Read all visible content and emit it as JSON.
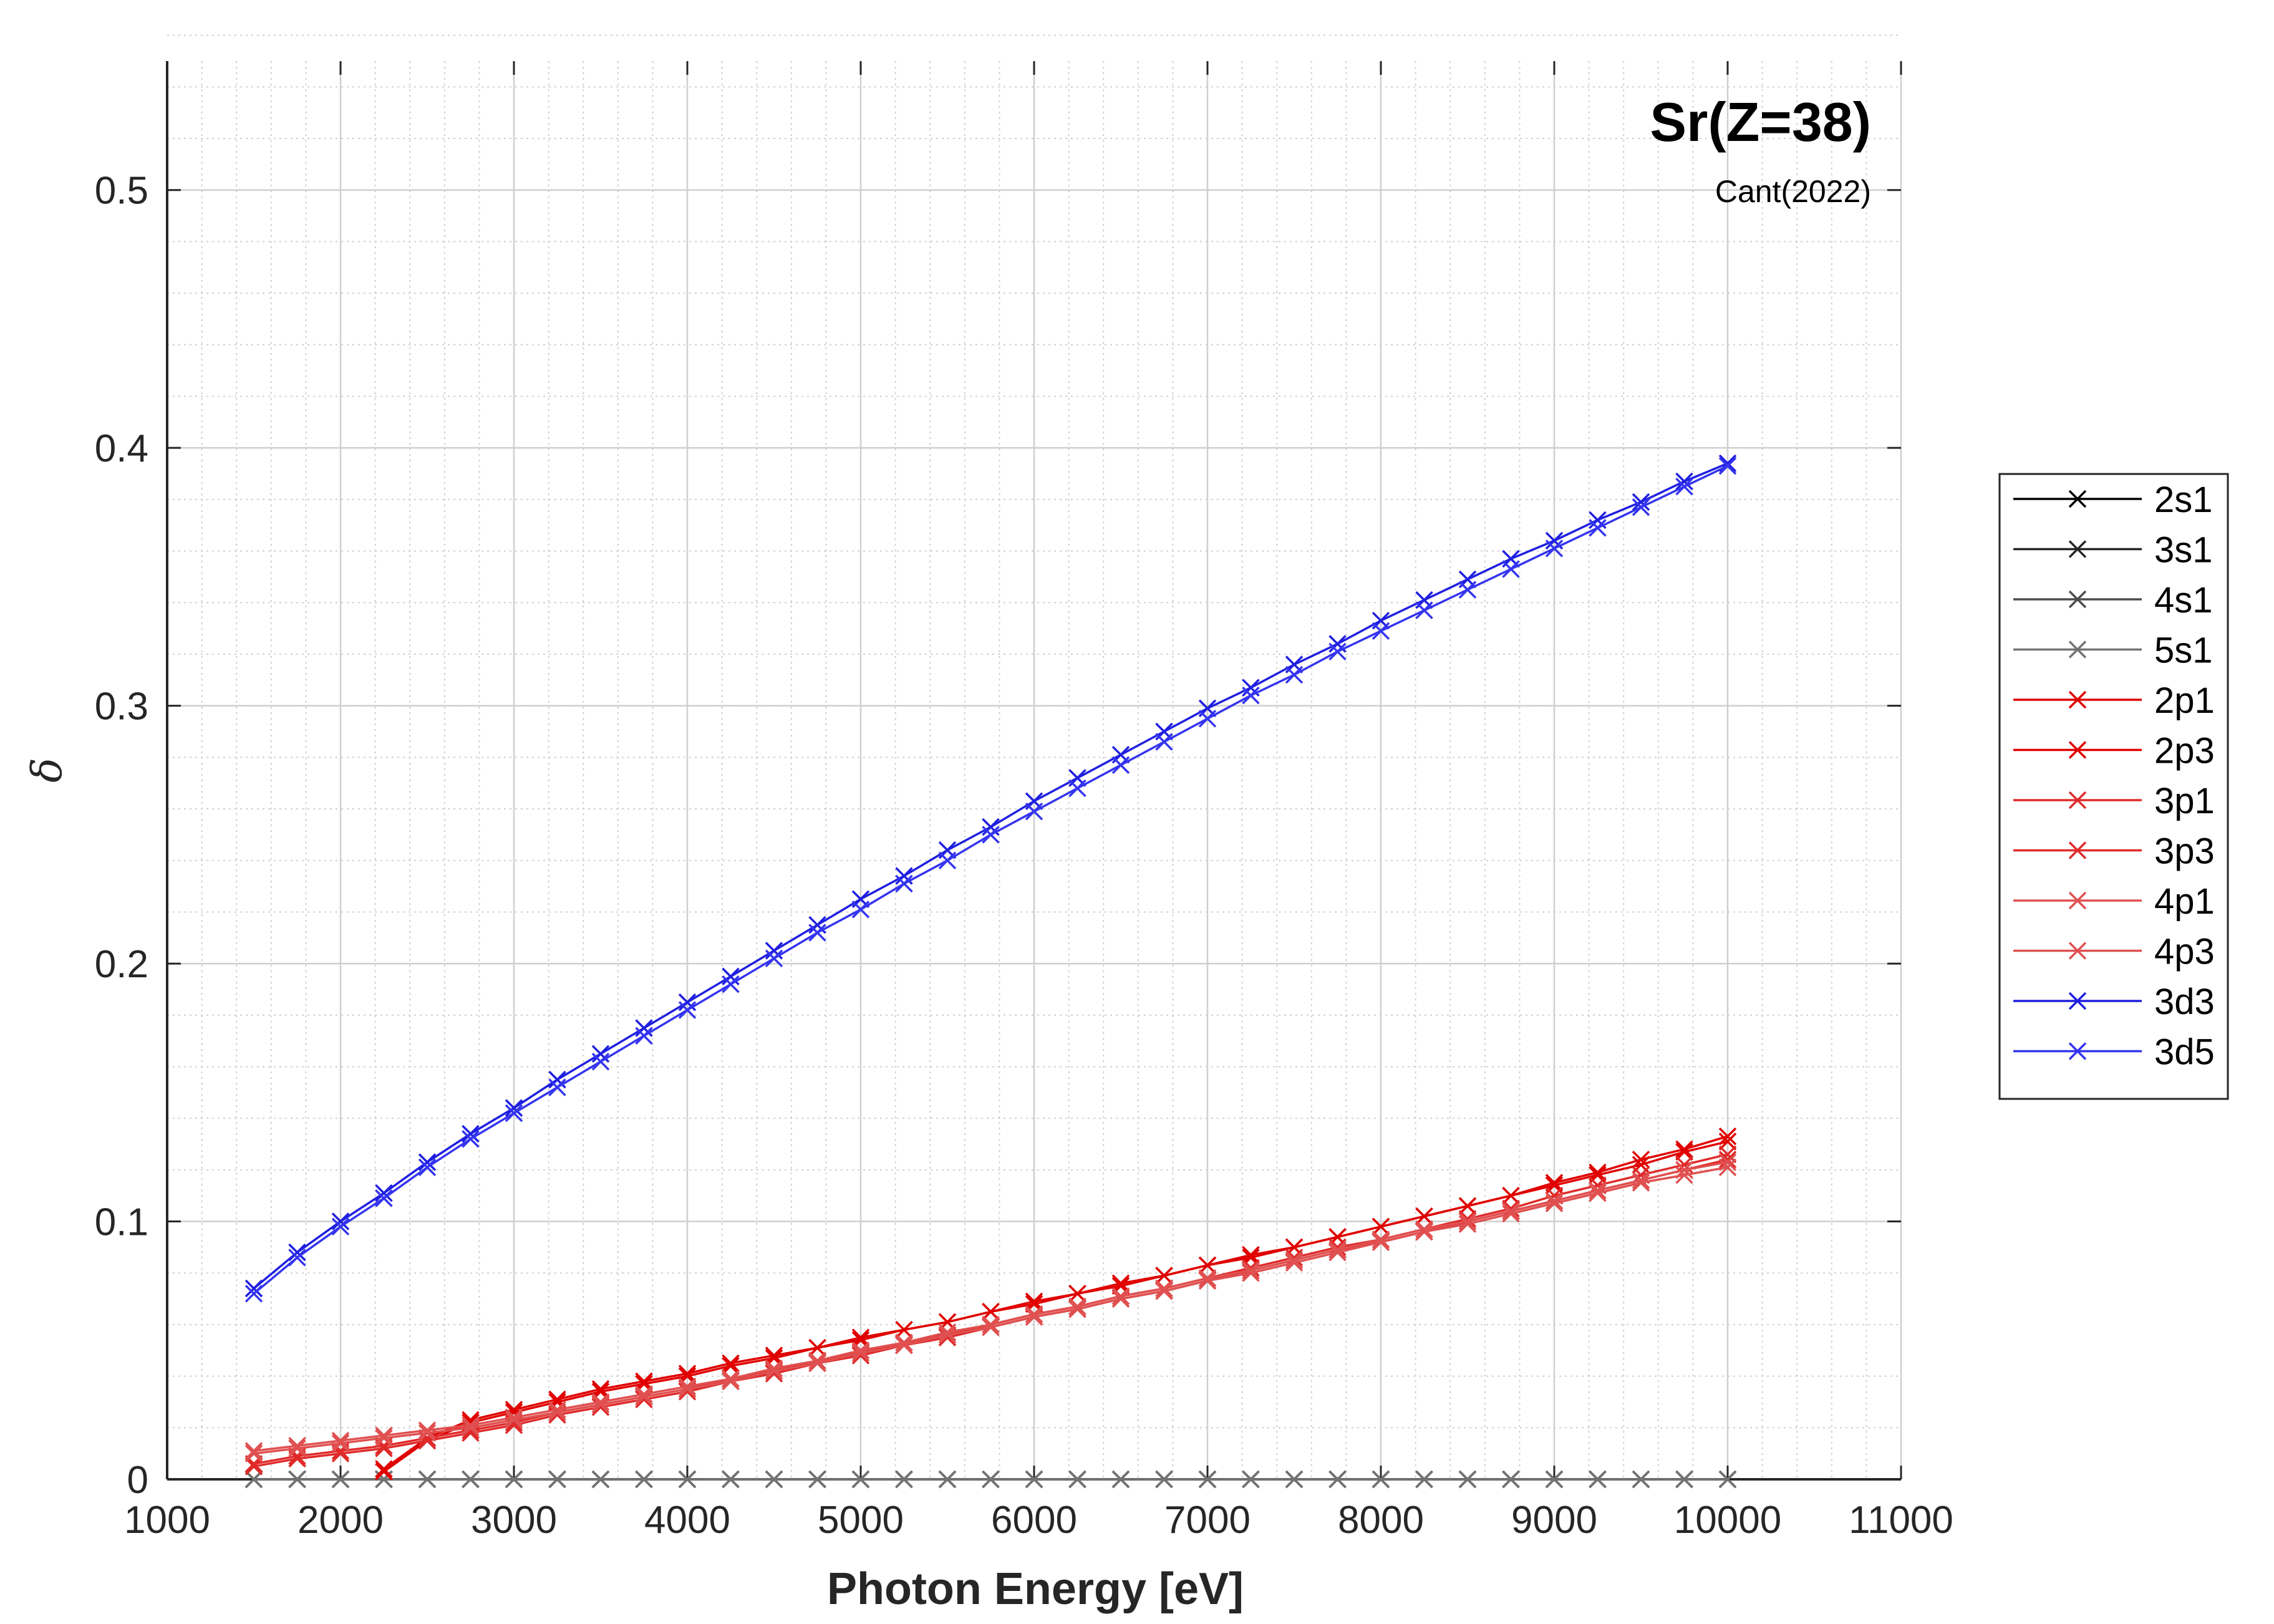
{
  "chart_data": {
    "type": "line",
    "title": "Sr(Z=38)",
    "subtitle": "Cant(2022)",
    "xlabel": "Photon Energy [eV]",
    "ylabel": "δ",
    "xlim": [
      1000,
      11000
    ],
    "ylim": [
      0,
      0.55
    ],
    "xticks": [
      1000,
      2000,
      3000,
      4000,
      5000,
      6000,
      7000,
      8000,
      9000,
      10000,
      11000
    ],
    "yticks": [
      0,
      0.1,
      0.2,
      0.3,
      0.4,
      0.5
    ],
    "x_tick_labels": [
      "1000",
      "2000",
      "3000",
      "4000",
      "5000",
      "6000",
      "7000",
      "8000",
      "9000",
      "10000",
      "11000"
    ],
    "y_tick_labels": [
      "0",
      "0.1",
      "0.2",
      "0.3",
      "0.4",
      "0.5"
    ],
    "grid": true,
    "minor_grid": true,
    "legend_position": "outside-right",
    "marker": "x",
    "x": [
      1500,
      1750,
      2000,
      2250,
      2500,
      2750,
      3000,
      3250,
      3500,
      3750,
      4000,
      4250,
      4500,
      4750,
      5000,
      5250,
      5500,
      5750,
      6000,
      6250,
      6500,
      6750,
      7000,
      7250,
      7500,
      7750,
      8000,
      8250,
      8500,
      8750,
      9000,
      9250,
      9500,
      9750,
      10000
    ],
    "series": [
      {
        "name": "2s1",
        "color": "#000000",
        "values": [
          0,
          0,
          0,
          0,
          0,
          0,
          0,
          0,
          0,
          0,
          0,
          0,
          0,
          0,
          0,
          0,
          0,
          0,
          0,
          0,
          0,
          0,
          0,
          0,
          0,
          0,
          0,
          0,
          0,
          0,
          0,
          0,
          0,
          0,
          0
        ]
      },
      {
        "name": "3s1",
        "color": "#262626",
        "values": [
          0,
          0,
          0,
          0,
          0,
          0,
          0,
          0,
          0,
          0,
          0,
          0,
          0,
          0,
          0,
          0,
          0,
          0,
          0,
          0,
          0,
          0,
          0,
          0,
          0,
          0,
          0,
          0,
          0,
          0,
          0,
          0,
          0,
          0,
          0
        ]
      },
      {
        "name": "4s1",
        "color": "#4d4d4d",
        "values": [
          0,
          0,
          0,
          0,
          0,
          0,
          0,
          0,
          0,
          0,
          0,
          0,
          0,
          0,
          0,
          0,
          0,
          0,
          0,
          0,
          0,
          0,
          0,
          0,
          0,
          0,
          0,
          0,
          0,
          0,
          0,
          0,
          0,
          0,
          0
        ]
      },
      {
        "name": "5s1",
        "color": "#737373",
        "values": [
          0,
          0,
          0,
          0,
          0,
          0,
          0,
          0,
          0,
          0,
          0,
          0,
          0,
          0,
          0,
          0,
          0,
          0,
          0,
          0,
          0,
          0,
          0,
          0,
          0,
          0,
          0,
          0,
          0,
          0,
          0,
          0,
          0,
          0,
          0
        ]
      },
      {
        "name": "2p1",
        "color": "#e00000",
        "values": [
          null,
          null,
          null,
          0.004,
          0.016,
          0.023,
          0.027,
          0.031,
          0.035,
          0.038,
          0.041,
          0.045,
          0.048,
          0.051,
          0.055,
          0.058,
          0.061,
          0.065,
          0.069,
          0.072,
          0.076,
          0.079,
          0.083,
          0.087,
          0.09,
          0.094,
          0.098,
          0.102,
          0.106,
          0.11,
          0.114,
          0.118,
          0.122,
          0.127,
          0.131
        ]
      },
      {
        "name": "2p3",
        "color": "#e00000",
        "values": [
          null,
          null,
          null,
          0.003,
          0.015,
          0.022,
          0.026,
          0.03,
          0.034,
          0.037,
          0.04,
          0.044,
          0.047,
          0.051,
          0.054,
          0.058,
          0.061,
          0.065,
          0.068,
          0.072,
          0.075,
          0.079,
          0.083,
          0.086,
          0.09,
          0.094,
          0.098,
          0.102,
          0.106,
          0.11,
          0.115,
          0.119,
          0.124,
          0.128,
          0.133
        ]
      },
      {
        "name": "3p1",
        "color": "#e02a2a",
        "values": [
          0.006,
          0.009,
          0.011,
          0.013,
          0.016,
          0.019,
          0.022,
          0.026,
          0.029,
          0.032,
          0.035,
          0.039,
          0.042,
          0.046,
          0.049,
          0.053,
          0.056,
          0.06,
          0.064,
          0.067,
          0.071,
          0.074,
          0.078,
          0.082,
          0.086,
          0.09,
          0.093,
          0.097,
          0.101,
          0.105,
          0.11,
          0.114,
          0.118,
          0.122,
          0.126
        ]
      },
      {
        "name": "3p3",
        "color": "#e02a2a",
        "values": [
          0.005,
          0.008,
          0.01,
          0.012,
          0.015,
          0.018,
          0.021,
          0.025,
          0.028,
          0.031,
          0.034,
          0.038,
          0.041,
          0.045,
          0.048,
          0.052,
          0.055,
          0.059,
          0.063,
          0.066,
          0.07,
          0.073,
          0.077,
          0.081,
          0.085,
          0.089,
          0.092,
          0.096,
          0.1,
          0.104,
          0.108,
          0.112,
          0.116,
          0.12,
          0.124
        ]
      },
      {
        "name": "4p1",
        "color": "#e05050",
        "values": [
          0.011,
          0.013,
          0.015,
          0.017,
          0.019,
          0.021,
          0.024,
          0.027,
          0.03,
          0.033,
          0.036,
          0.039,
          0.043,
          0.046,
          0.05,
          0.053,
          0.057,
          0.06,
          0.064,
          0.067,
          0.071,
          0.074,
          0.078,
          0.081,
          0.085,
          0.089,
          0.093,
          0.097,
          0.1,
          0.104,
          0.108,
          0.112,
          0.116,
          0.12,
          0.123
        ]
      },
      {
        "name": "4p3",
        "color": "#e05050",
        "values": [
          0.01,
          0.012,
          0.014,
          0.016,
          0.018,
          0.02,
          0.023,
          0.026,
          0.029,
          0.032,
          0.035,
          0.038,
          0.042,
          0.045,
          0.049,
          0.052,
          0.056,
          0.059,
          0.063,
          0.066,
          0.07,
          0.073,
          0.077,
          0.08,
          0.084,
          0.088,
          0.092,
          0.096,
          0.099,
          0.103,
          0.107,
          0.111,
          0.115,
          0.118,
          0.121
        ]
      },
      {
        "name": "3d3",
        "color": "#1f1fe0",
        "values": [
          0.074,
          0.088,
          0.1,
          0.111,
          0.123,
          0.134,
          0.144,
          0.155,
          0.165,
          0.175,
          0.185,
          0.195,
          0.205,
          0.215,
          0.225,
          0.234,
          0.244,
          0.253,
          0.263,
          0.272,
          0.281,
          0.29,
          0.299,
          0.307,
          0.316,
          0.324,
          0.333,
          0.341,
          0.349,
          0.357,
          0.364,
          0.372,
          0.379,
          0.387,
          0.394
        ]
      },
      {
        "name": "3d5",
        "color": "#3434f0",
        "values": [
          0.072,
          0.086,
          0.098,
          0.109,
          0.121,
          0.132,
          0.142,
          0.152,
          0.162,
          0.172,
          0.182,
          0.192,
          0.202,
          0.212,
          0.221,
          0.231,
          0.24,
          0.25,
          0.259,
          0.268,
          0.277,
          0.286,
          0.295,
          0.304,
          0.312,
          0.321,
          0.329,
          0.337,
          0.345,
          0.353,
          0.361,
          0.369,
          0.377,
          0.385,
          0.393
        ]
      }
    ]
  }
}
